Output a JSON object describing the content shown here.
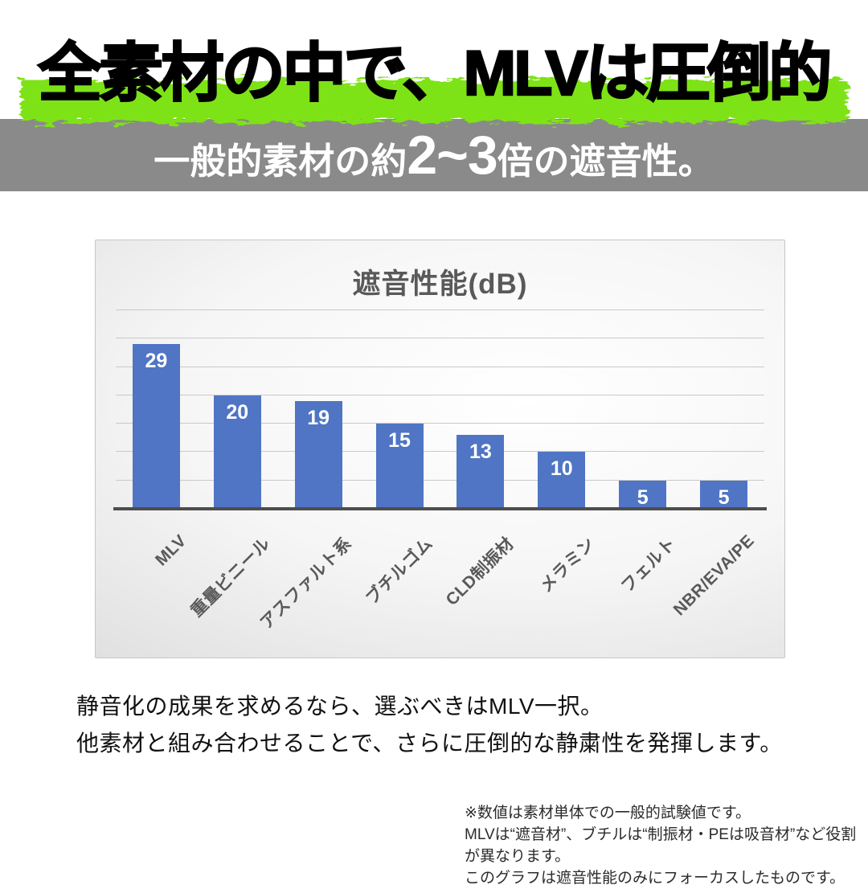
{
  "headline": {
    "text": "全素材の中で、MLVは圧倒的"
  },
  "banner": {
    "prefix": "一般的素材の約",
    "emphasis": "2~3",
    "suffix": "倍の遮音性。"
  },
  "chart_data": {
    "type": "bar",
    "title": "遮音性能(dB)",
    "categories": [
      "MLV",
      "重量ビニール",
      "アスファルト系",
      "ブチルゴム",
      "CLD制振材",
      "メラミン",
      "フェルト",
      "NBR/EVA/PE"
    ],
    "values": [
      29,
      20,
      19,
      15,
      13,
      10,
      5,
      5
    ],
    "xlabel": "",
    "ylabel": "",
    "ylim": [
      0,
      35
    ],
    "gridline_step": 5,
    "grid": true,
    "legend": "none",
    "data_labels": "inside-end"
  },
  "body": {
    "line1": "静音化の成果を求めるなら、選ぶべきはMLV一択。",
    "line2": "他素材と組み合わせることで、さらに圧倒的な静粛性を発揮します。"
  },
  "footnote": {
    "line1": "※数値は素材単体での一般的試験値です。",
    "line2": "MLVは“遮音材”、ブチルは“制振材・PEは吸音材”など役割が異なります。",
    "line3": "このグラフは遮音性能のみにフォーカスしたものです。"
  },
  "colors": {
    "highlight_green": "#7ee319",
    "banner_gray": "#8a8a8a",
    "bar_blue": "#4f75c4",
    "chart_text": "#595959",
    "gridline": "#c9c9c9",
    "axis": "#4d4d4d",
    "data_label": "#ffffff"
  }
}
